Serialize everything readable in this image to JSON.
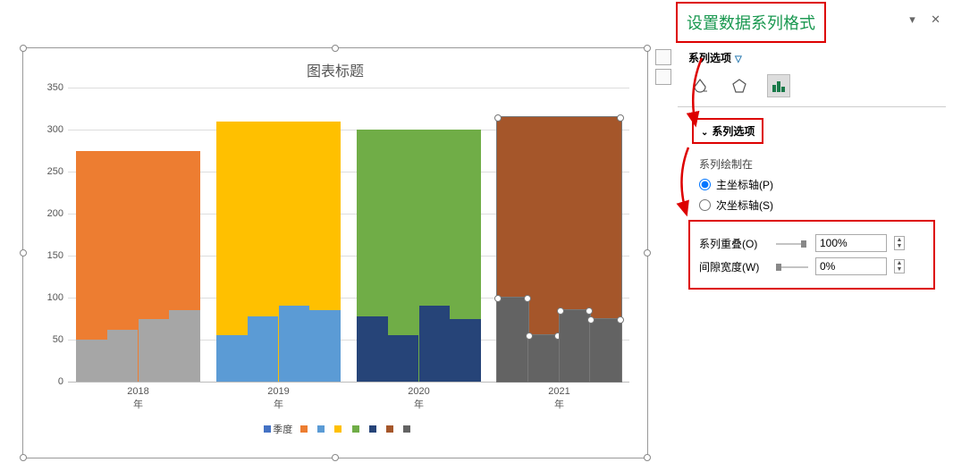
{
  "chart": {
    "title": "图表标题",
    "ymax": 350,
    "ytick_step": 50,
    "yticks": [
      0,
      50,
      100,
      150,
      200,
      250,
      300,
      350
    ],
    "categories": [
      "2018",
      "2019",
      "2020",
      "2021"
    ],
    "cat_suffix": "年",
    "legend_label": "季度",
    "legend_swatches": [
      "#ed7d31",
      "#5b9bd5",
      "#ffc000",
      "#70ad47",
      "#264478",
      "#a5562a",
      "#636363"
    ],
    "groups": [
      {
        "bg_color": "#ed7d31",
        "bg_value": 275,
        "fronts": [
          50,
          62,
          75,
          85
        ],
        "front_color": "#a6a6a6"
      },
      {
        "bg_color": "#ffc000",
        "bg_value": 310,
        "fronts": [
          55,
          78,
          90,
          85
        ],
        "front_color": "#5b9bd5"
      },
      {
        "bg_color": "#70ad47",
        "bg_value": 300,
        "fronts": [
          78,
          55,
          90,
          75
        ],
        "front_color": "#264478"
      },
      {
        "bg_color": "#a5562a",
        "bg_value": 315,
        "fronts": [
          100,
          55,
          85,
          75
        ],
        "front_color": "#636363",
        "selected": true
      }
    ]
  },
  "pane": {
    "title": "设置数据系列格式",
    "subtitle": "系列选项",
    "section": "系列选项",
    "plot_on_label": "系列绘制在",
    "primary_axis": "主坐标轴(P)",
    "secondary_axis": "次坐标轴(S)",
    "axis_selected": "primary",
    "overlap_label": "系列重叠(O)",
    "overlap_value": "100%",
    "gap_label": "间隙宽度(W)",
    "gap_value": "0%"
  }
}
